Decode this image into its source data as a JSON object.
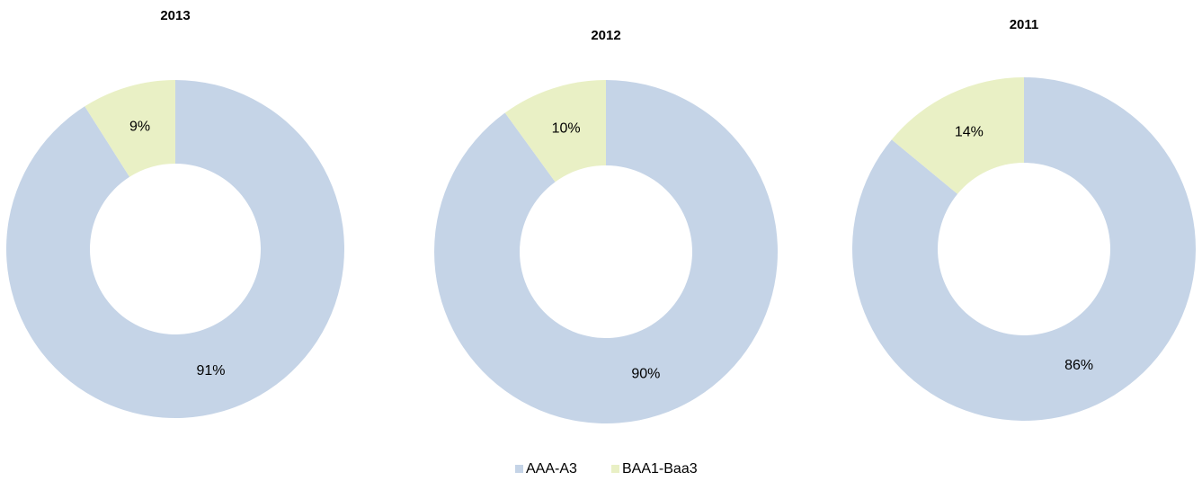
{
  "chart_data": [
    {
      "type": "donut",
      "title": "2013",
      "categories": [
        "AAA-A3",
        "BAA1-Baa3"
      ],
      "values": [
        91,
        9
      ],
      "value_labels": [
        "91%",
        "9%"
      ],
      "colors": [
        "#c5d4e7",
        "#e9f0c5"
      ]
    },
    {
      "type": "donut",
      "title": "2012",
      "categories": [
        "AAA-A3",
        "BAA1-Baa3"
      ],
      "values": [
        90,
        10
      ],
      "value_labels": [
        "90%",
        "10%"
      ],
      "colors": [
        "#c5d4e7",
        "#e9f0c5"
      ]
    },
    {
      "type": "donut",
      "title": "2011",
      "categories": [
        "AAA-A3",
        "BAA1-Baa3"
      ],
      "values": [
        86,
        14
      ],
      "value_labels": [
        "86%",
        "14%"
      ],
      "colors": [
        "#c5d4e7",
        "#e9f0c5"
      ]
    }
  ]
}
